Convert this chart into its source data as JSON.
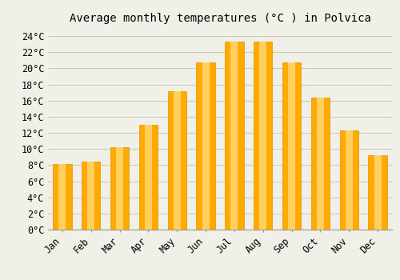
{
  "title": "Average monthly temperatures (°C ) in Polvica",
  "months": [
    "Jan",
    "Feb",
    "Mar",
    "Apr",
    "May",
    "Jun",
    "Jul",
    "Aug",
    "Sep",
    "Oct",
    "Nov",
    "Dec"
  ],
  "values": [
    8.1,
    8.4,
    10.2,
    13.0,
    17.2,
    20.7,
    23.3,
    23.3,
    20.7,
    16.4,
    12.3,
    9.2
  ],
  "bar_color": "#FFAA00",
  "bar_color_light": "#FFD060",
  "bar_edge_color": "#E89000",
  "background_color": "#F0F0E8",
  "plot_bg_color": "#F0F0E8",
  "grid_color": "#CCCCBB",
  "ylim": [
    0,
    25
  ],
  "ytick_step": 2,
  "title_fontsize": 10,
  "tick_fontsize": 8.5,
  "font_family": "monospace"
}
